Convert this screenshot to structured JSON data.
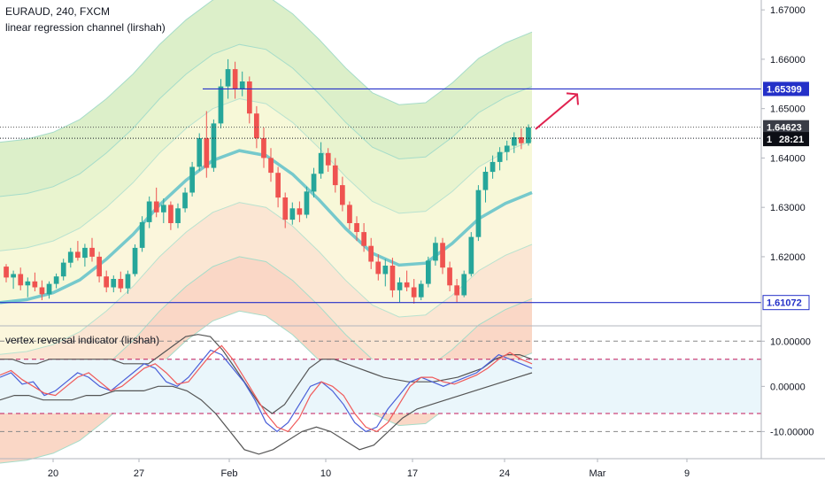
{
  "header": {
    "symbol_line": "EURAUD, 240, FXCM",
    "indicator1": "linear regression channel (lirshah)",
    "indicator2": "vertex reversal indicator (lirshah)"
  },
  "colors": {
    "bull": "#26a69a",
    "bear": "#ef5350",
    "level_line": "#2430c8",
    "arrow": "#e0224f",
    "center_line": "#76c9cc",
    "osc_blue": "#4a5fd8",
    "osc_red": "#f05a5a",
    "osc_band": "#555555",
    "osc_dash": "#c2185b"
  },
  "chart_data": [
    {
      "type": "line",
      "title": "EURAUD, 240, FXCM",
      "subtitle": "linear regression channel (lirshah)",
      "x_tick_labels": [
        "20",
        "27",
        "Feb",
        "10",
        "17",
        "24",
        "Mar",
        "9"
      ],
      "ylim": [
        1.606,
        1.672
      ],
      "y_tick_labels": [
        "1.67000",
        "1.66000",
        "1.65000",
        "1.64000",
        "1.63000",
        "1.62000"
      ],
      "horizontal_levels": [
        1.65399,
        1.61072
      ],
      "price_tags": [
        {
          "label": "1.65399",
          "value": 1.65399,
          "style": "blue"
        },
        {
          "label": "1.64623",
          "value": 1.64623,
          "style": "dark"
        },
        {
          "label": "1",
          "value": 1.644,
          "style": "black"
        },
        {
          "label": "28:21",
          "value": 1.644,
          "style": "black"
        },
        {
          "label": "1.61072",
          "value": 1.61072,
          "style": "blue"
        }
      ],
      "regression_center": [
        1.6107,
        1.6113,
        1.6127,
        1.6153,
        1.6195,
        1.6245,
        1.6305,
        1.6355,
        1.6395,
        1.6415,
        1.6405,
        1.6367,
        1.6315,
        1.6257,
        1.6207,
        1.6183,
        1.6187,
        1.6227,
        1.6277,
        1.6308,
        1.633
      ],
      "regression_band_offsets": [
        0.0105,
        0.0215,
        0.0325
      ],
      "candles_ohlc": [
        [
          1.618,
          1.6185,
          1.6148,
          1.6158
        ],
        [
          1.6158,
          1.6172,
          1.6135,
          1.6165
        ],
        [
          1.6165,
          1.6178,
          1.6132,
          1.6142
        ],
        [
          1.6142,
          1.6158,
          1.6118,
          1.615
        ],
        [
          1.615,
          1.6168,
          1.613,
          1.6138
        ],
        [
          1.6138,
          1.6152,
          1.6112,
          1.6124
        ],
        [
          1.6124,
          1.615,
          1.6115,
          1.6145
        ],
        [
          1.6145,
          1.6166,
          1.6136,
          1.616
        ],
        [
          1.616,
          1.6196,
          1.6152,
          1.6188
        ],
        [
          1.6188,
          1.6218,
          1.6178,
          1.621
        ],
        [
          1.621,
          1.6232,
          1.6192,
          1.6198
        ],
        [
          1.6198,
          1.6226,
          1.618,
          1.6218
        ],
        [
          1.6218,
          1.6238,
          1.619,
          1.62
        ],
        [
          1.62,
          1.621,
          1.6148,
          1.616
        ],
        [
          1.616,
          1.6172,
          1.6128,
          1.6138
        ],
        [
          1.6138,
          1.6162,
          1.6128,
          1.6155
        ],
        [
          1.6155,
          1.617,
          1.6128,
          1.6136
        ],
        [
          1.6136,
          1.6172,
          1.6125,
          1.6165
        ],
        [
          1.6165,
          1.6225,
          1.616,
          1.6218
        ],
        [
          1.6218,
          1.6282,
          1.621,
          1.627
        ],
        [
          1.627,
          1.6322,
          1.6258,
          1.6312
        ],
        [
          1.6312,
          1.634,
          1.628,
          1.629
        ],
        [
          1.629,
          1.6318,
          1.6268,
          1.6305
        ],
        [
          1.6305,
          1.6312,
          1.6254,
          1.6268
        ],
        [
          1.6268,
          1.6308,
          1.6258,
          1.6298
        ],
        [
          1.6298,
          1.634,
          1.629,
          1.633
        ],
        [
          1.633,
          1.6392,
          1.6322,
          1.6382
        ],
        [
          1.6382,
          1.645,
          1.6374,
          1.644
        ],
        [
          1.644,
          1.6495,
          1.636,
          1.638
        ],
        [
          1.638,
          1.6478,
          1.6372,
          1.647
        ],
        [
          1.647,
          1.656,
          1.646,
          1.6545
        ],
        [
          1.6545,
          1.66,
          1.652,
          1.658
        ],
        [
          1.658,
          1.6595,
          1.652,
          1.654
        ],
        [
          1.654,
          1.6575,
          1.6525,
          1.6555
        ],
        [
          1.6555,
          1.6565,
          1.647,
          1.649
        ],
        [
          1.649,
          1.6505,
          1.642,
          1.644
        ],
        [
          1.644,
          1.6462,
          1.638,
          1.64
        ],
        [
          1.64,
          1.642,
          1.6352,
          1.637
        ],
        [
          1.637,
          1.6382,
          1.63,
          1.632
        ],
        [
          1.632,
          1.633,
          1.6258,
          1.6275
        ],
        [
          1.6275,
          1.631,
          1.6265,
          1.6298
        ],
        [
          1.6298,
          1.6312,
          1.627,
          1.6285
        ],
        [
          1.6285,
          1.6342,
          1.6278,
          1.6332
        ],
        [
          1.6332,
          1.638,
          1.632,
          1.6368
        ],
        [
          1.6368,
          1.6432,
          1.6358,
          1.641
        ],
        [
          1.641,
          1.642,
          1.6372,
          1.6385
        ],
        [
          1.6385,
          1.64,
          1.633,
          1.6345
        ],
        [
          1.6345,
          1.6362,
          1.6292,
          1.6305
        ],
        [
          1.6305,
          1.6312,
          1.6255,
          1.6268
        ],
        [
          1.6268,
          1.6282,
          1.6232,
          1.625
        ],
        [
          1.625,
          1.6268,
          1.621,
          1.6222
        ],
        [
          1.6222,
          1.6238,
          1.6175,
          1.619
        ],
        [
          1.619,
          1.6205,
          1.6152,
          1.6165
        ],
        [
          1.6165,
          1.6195,
          1.614,
          1.6182
        ],
        [
          1.6182,
          1.6198,
          1.6118,
          1.6132
        ],
        [
          1.6132,
          1.6158,
          1.6108,
          1.6148
        ],
        [
          1.6148,
          1.6172,
          1.613,
          1.6138
        ],
        [
          1.6138,
          1.6155,
          1.6105,
          1.6118
        ],
        [
          1.6118,
          1.6152,
          1.6112,
          1.6145
        ],
        [
          1.6145,
          1.62,
          1.6138,
          1.6192
        ],
        [
          1.6192,
          1.624,
          1.6182,
          1.6228
        ],
        [
          1.6228,
          1.6238,
          1.6165,
          1.6178
        ],
        [
          1.6178,
          1.619,
          1.613,
          1.6142
        ],
        [
          1.6142,
          1.6155,
          1.6108,
          1.6122
        ],
        [
          1.6122,
          1.6172,
          1.6118,
          1.6165
        ],
        [
          1.6165,
          1.625,
          1.616,
          1.624
        ],
        [
          1.624,
          1.6345,
          1.6232,
          1.6335
        ],
        [
          1.6335,
          1.6382,
          1.631,
          1.6372
        ],
        [
          1.6372,
          1.6405,
          1.6358,
          1.6392
        ],
        [
          1.6392,
          1.6422,
          1.6375,
          1.6412
        ],
        [
          1.6412,
          1.6435,
          1.6395,
          1.6425
        ],
        [
          1.6425,
          1.6452,
          1.641,
          1.6442
        ],
        [
          1.6442,
          1.646,
          1.6418,
          1.643
        ],
        [
          1.643,
          1.6468,
          1.6425,
          1.6462
        ]
      ]
    },
    {
      "type": "line",
      "title": "vertex reversal indicator (lirshah)",
      "x_tick_labels": [
        "20",
        "27",
        "Feb",
        "10",
        "17",
        "24",
        "Mar",
        "9"
      ],
      "ylim": [
        -16,
        13
      ],
      "y_tick_labels": [
        "10.00000",
        "0.00000",
        "-10.00000"
      ],
      "dashed_levels": [
        10,
        6,
        -6,
        -10
      ],
      "series": [
        {
          "values": [
            2,
            3,
            0.5,
            1,
            -2,
            -1,
            1,
            3,
            2,
            0,
            -1,
            1,
            3,
            5,
            4,
            1,
            0,
            2,
            5,
            8,
            7,
            4,
            1,
            -3,
            -8,
            -10,
            -8,
            -4,
            0,
            1,
            -1,
            -4,
            -8,
            -10,
            -9,
            -5,
            -2,
            1,
            2,
            1,
            0,
            1,
            2,
            3,
            5,
            7,
            6,
            5,
            4
          ]
        },
        {
          "values": [
            2.5,
            3.5,
            1.5,
            0,
            -1.5,
            -2,
            0,
            2,
            3,
            1,
            -1,
            0,
            2,
            4,
            5,
            3,
            0.5,
            1,
            4,
            7,
            9,
            6,
            2,
            -2,
            -6,
            -9,
            -10,
            -7,
            -2,
            1,
            0,
            -2,
            -6,
            -9,
            -10,
            -8,
            -4,
            0,
            2,
            2,
            1,
            0.5,
            1.5,
            2.5,
            4,
            6,
            7.5,
            6,
            5
          ]
        },
        {
          "values": [
            6,
            6,
            5,
            5,
            6,
            6,
            6,
            6,
            6,
            6,
            5,
            5,
            5,
            7,
            9,
            11,
            11.5,
            11,
            8,
            4,
            0,
            -4,
            -6,
            -4,
            0,
            4,
            6,
            6,
            5,
            4,
            3,
            2,
            1.5,
            1,
            1,
            1,
            1.5,
            2,
            3,
            4,
            6,
            7,
            7,
            6
          ]
        },
        {
          "values": [
            -3,
            -2,
            -2,
            -3,
            -3,
            -3,
            -2,
            -2,
            -1,
            -1,
            -1,
            0,
            0,
            -1,
            -3,
            -6,
            -10,
            -14,
            -15,
            -14,
            -12,
            -10,
            -9,
            -10,
            -12,
            -14,
            -13,
            -10,
            -7,
            -5,
            -4,
            -3,
            -2,
            -1,
            0,
            1,
            2,
            3
          ]
        }
      ]
    }
  ]
}
